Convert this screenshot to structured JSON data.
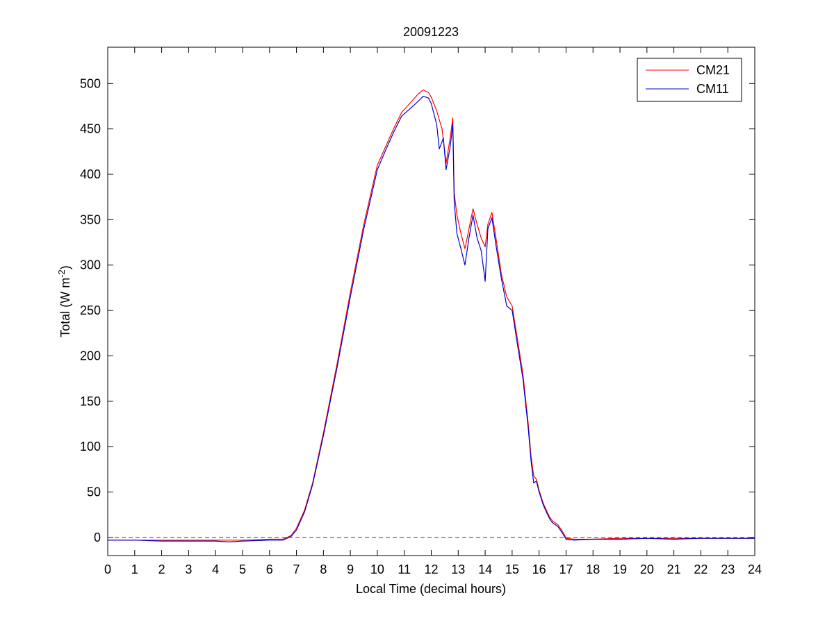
{
  "chart_data": {
    "type": "line",
    "title": "20091223",
    "xlabel": "Local Time (decimal hours)",
    "ylabel": "Total (W m",
    "ylabel_unit_exponent": "-2",
    "ylabel_close": ")",
    "xlim": [
      0,
      24
    ],
    "ylim": [
      -20,
      540
    ],
    "xticks": [
      0,
      1,
      2,
      3,
      4,
      5,
      6,
      7,
      8,
      9,
      10,
      11,
      12,
      13,
      14,
      15,
      16,
      17,
      18,
      19,
      20,
      21,
      22,
      23,
      24
    ],
    "yticks": [
      0,
      50,
      100,
      150,
      200,
      250,
      300,
      350,
      400,
      450,
      500
    ],
    "grid": false,
    "legend_position": "top-right",
    "reference_line": {
      "y": 0,
      "style": "dashed",
      "color": "#c00000"
    },
    "series": [
      {
        "name": "CM21",
        "color": "#ff0000",
        "points": [
          [
            0,
            -3
          ],
          [
            1,
            -3
          ],
          [
            2,
            -3
          ],
          [
            3,
            -3
          ],
          [
            4,
            -3
          ],
          [
            5,
            -3
          ],
          [
            6,
            -2
          ],
          [
            6.5,
            -2
          ],
          [
            6.8,
            2
          ],
          [
            7,
            10
          ],
          [
            7.3,
            30
          ],
          [
            7.6,
            60
          ],
          [
            8,
            115
          ],
          [
            8.5,
            190
          ],
          [
            9,
            270
          ],
          [
            9.5,
            345
          ],
          [
            10,
            410
          ],
          [
            10.3,
            430
          ],
          [
            10.6,
            450
          ],
          [
            10.9,
            468
          ],
          [
            11.2,
            478
          ],
          [
            11.5,
            488
          ],
          [
            11.7,
            493
          ],
          [
            11.9,
            490
          ],
          [
            12,
            485
          ],
          [
            12.2,
            470
          ],
          [
            12.4,
            450
          ],
          [
            12.55,
            412
          ],
          [
            12.7,
            440
          ],
          [
            12.8,
            462
          ],
          [
            12.85,
            380
          ],
          [
            12.95,
            355
          ],
          [
            13.1,
            335
          ],
          [
            13.25,
            318
          ],
          [
            13.4,
            340
          ],
          [
            13.55,
            362
          ],
          [
            13.7,
            345
          ],
          [
            13.85,
            330
          ],
          [
            14,
            320
          ],
          [
            14.1,
            345
          ],
          [
            14.25,
            358
          ],
          [
            14.4,
            330
          ],
          [
            14.6,
            290
          ],
          [
            14.8,
            265
          ],
          [
            15,
            255
          ],
          [
            15.2,
            218
          ],
          [
            15.4,
            180
          ],
          [
            15.6,
            125
          ],
          [
            15.7,
            90
          ],
          [
            15.8,
            68
          ],
          [
            15.9,
            64
          ],
          [
            16,
            52
          ],
          [
            16.15,
            38
          ],
          [
            16.3,
            28
          ],
          [
            16.4,
            22
          ],
          [
            16.5,
            18
          ],
          [
            16.7,
            14
          ],
          [
            16.9,
            5
          ],
          [
            17,
            -1
          ],
          [
            17.3,
            -2
          ],
          [
            18,
            -2
          ],
          [
            19,
            -1
          ],
          [
            20,
            -1
          ],
          [
            21,
            -1
          ],
          [
            22,
            -1
          ],
          [
            23,
            -1
          ],
          [
            24,
            -1
          ]
        ]
      },
      {
        "name": "CM11",
        "color": "#0000cc",
        "points": [
          [
            0,
            -3
          ],
          [
            1,
            -3
          ],
          [
            2,
            -4
          ],
          [
            3,
            -4
          ],
          [
            4,
            -4
          ],
          [
            4.5,
            -5
          ],
          [
            5,
            -4
          ],
          [
            6,
            -3
          ],
          [
            6.5,
            -3
          ],
          [
            6.8,
            1
          ],
          [
            7,
            8
          ],
          [
            7.3,
            28
          ],
          [
            7.6,
            58
          ],
          [
            8,
            112
          ],
          [
            8.5,
            186
          ],
          [
            9,
            265
          ],
          [
            9.5,
            340
          ],
          [
            10,
            405
          ],
          [
            10.3,
            426
          ],
          [
            10.6,
            446
          ],
          [
            10.9,
            464
          ],
          [
            11.2,
            472
          ],
          [
            11.5,
            480
          ],
          [
            11.7,
            486
          ],
          [
            11.9,
            484
          ],
          [
            12,
            478
          ],
          [
            12.2,
            455
          ],
          [
            12.3,
            428
          ],
          [
            12.45,
            440
          ],
          [
            12.55,
            405
          ],
          [
            12.7,
            430
          ],
          [
            12.8,
            455
          ],
          [
            12.85,
            370
          ],
          [
            12.95,
            335
          ],
          [
            13.1,
            318
          ],
          [
            13.25,
            300
          ],
          [
            13.4,
            330
          ],
          [
            13.55,
            355
          ],
          [
            13.7,
            330
          ],
          [
            13.85,
            316
          ],
          [
            14,
            282
          ],
          [
            14.1,
            340
          ],
          [
            14.25,
            352
          ],
          [
            14.4,
            322
          ],
          [
            14.6,
            285
          ],
          [
            14.8,
            255
          ],
          [
            15,
            250
          ],
          [
            15.2,
            212
          ],
          [
            15.4,
            175
          ],
          [
            15.6,
            120
          ],
          [
            15.7,
            85
          ],
          [
            15.8,
            60
          ],
          [
            15.9,
            62
          ],
          [
            16,
            50
          ],
          [
            16.15,
            36
          ],
          [
            16.3,
            26
          ],
          [
            16.4,
            20
          ],
          [
            16.5,
            16
          ],
          [
            16.7,
            12
          ],
          [
            16.9,
            3
          ],
          [
            17,
            -2
          ],
          [
            17.3,
            -3
          ],
          [
            18,
            -2
          ],
          [
            19,
            -2
          ],
          [
            20,
            -1
          ],
          [
            21,
            -2
          ],
          [
            22,
            -1
          ],
          [
            23,
            -1
          ],
          [
            24,
            -1
          ]
        ]
      }
    ]
  }
}
